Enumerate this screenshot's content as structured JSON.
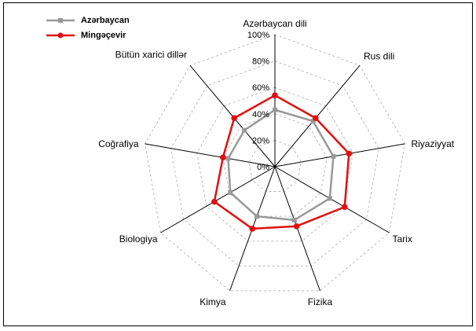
{
  "chart_data": {
    "type": "radar",
    "categories": [
      "Azərbaycan dili",
      "Rus dili",
      "Riyaziyyat",
      "Tarix",
      "Fizika",
      "Kimya",
      "Biologiya",
      "Coğrafiya",
      "Bütün xarici dillər"
    ],
    "series": [
      {
        "name": "Azərbaycan",
        "color": "#999999",
        "values": [
          43,
          45,
          45,
          48,
          43,
          40,
          39,
          36,
          36
        ]
      },
      {
        "name": "Mingəçevir",
        "color": "#e01010",
        "values": [
          54,
          48,
          57,
          61,
          48,
          50,
          53,
          40,
          48
        ]
      }
    ],
    "r_ticks": [
      "0%",
      "20%",
      "40%",
      "60%",
      "80%",
      "100%"
    ],
    "rlim": [
      0,
      100
    ],
    "grid": true,
    "legend_position": "top-left"
  }
}
